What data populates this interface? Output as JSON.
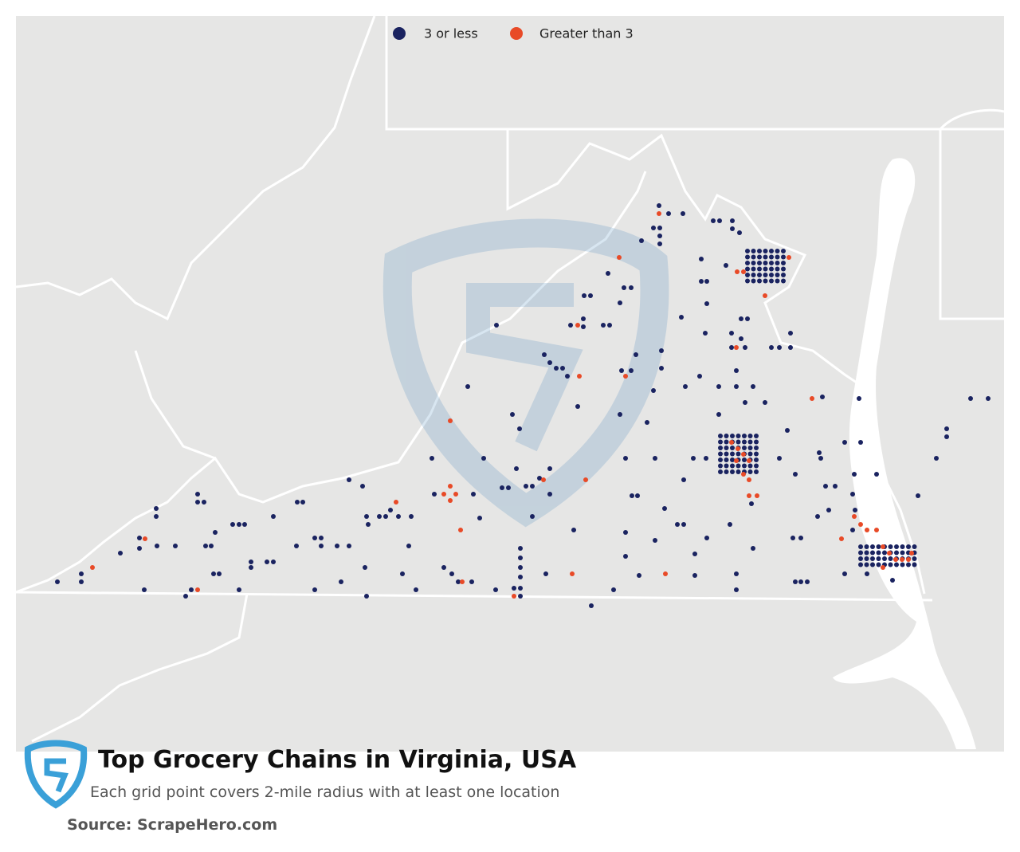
{
  "legend": {
    "items": [
      "3 or less",
      "Greater than 3"
    ]
  },
  "title": "Top Grocery Chains in Virginia, USA",
  "subtitle": "Each grid point covers 2-mile radius with at least one location",
  "source": "Source: ScrapeHero.com"
}
